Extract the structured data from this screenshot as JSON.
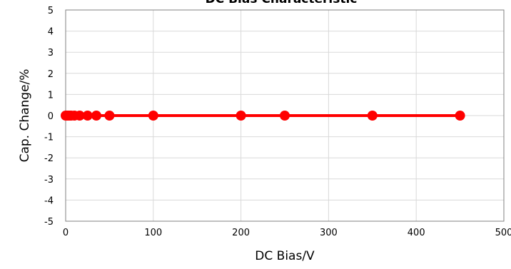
{
  "chart_data": {
    "type": "line",
    "title": "DC Bias Characteristic",
    "xlabel": "DC Bias/V",
    "ylabel": "Cap. Change/%",
    "xlim": [
      0,
      500
    ],
    "ylim": [
      -5,
      5
    ],
    "xticks": [
      "0",
      "100",
      "200",
      "300",
      "400",
      "500"
    ],
    "yticks": [
      "-5",
      "-4",
      "-3",
      "-2",
      "-1",
      "0",
      "1",
      "2",
      "3",
      "4",
      "5"
    ],
    "grid": true,
    "legend": "none",
    "series": [
      {
        "color": "#ff0000",
        "x": [
          0,
          1,
          2,
          3,
          5,
          6.3,
          10,
          16,
          25,
          35,
          50,
          100,
          200,
          250,
          350,
          450
        ],
        "y": [
          0,
          0,
          0,
          0,
          0,
          0,
          0,
          0,
          0,
          0,
          0,
          0,
          0,
          0,
          0,
          0
        ]
      }
    ]
  }
}
